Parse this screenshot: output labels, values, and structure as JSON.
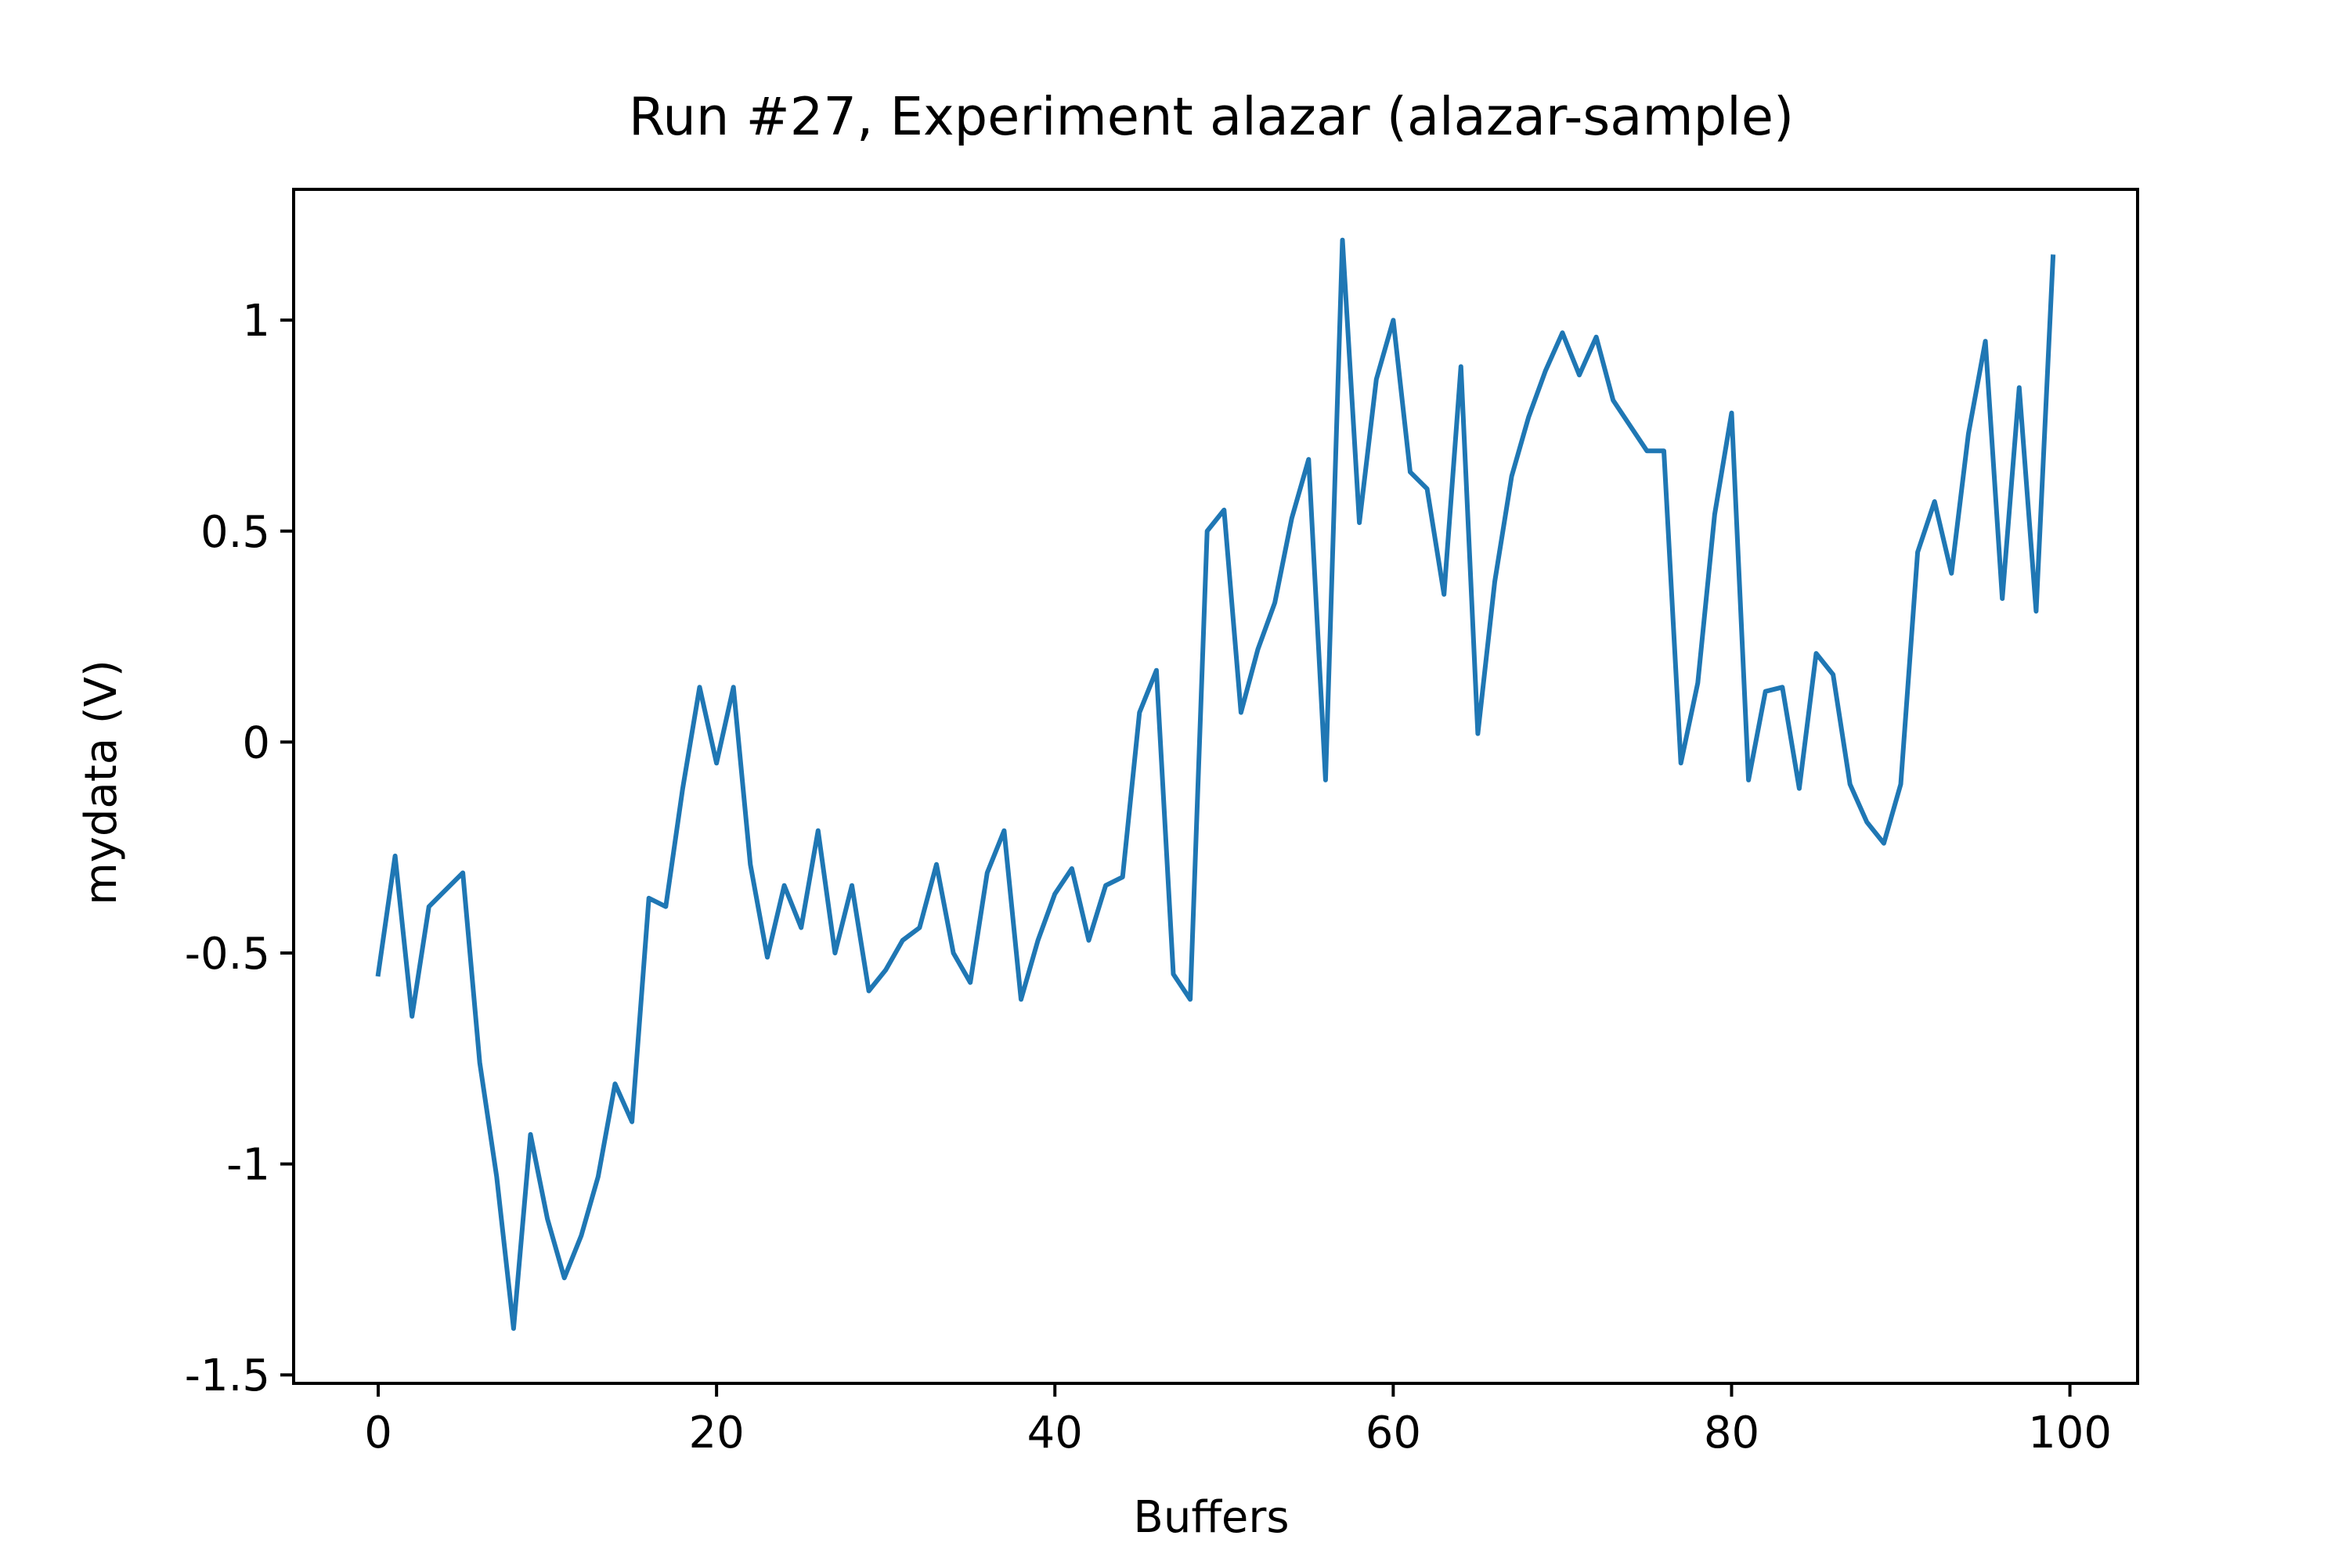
{
  "chart_data": {
    "type": "line",
    "title": "Run #27, Experiment alazar (alazar-sample)",
    "xlabel": "Buffers",
    "ylabel": "mydata (V)",
    "xlim": [
      -5,
      104
    ],
    "ylim": [
      -1.52,
      1.31
    ],
    "xticks": [
      {
        "value": 0,
        "label": "0"
      },
      {
        "value": 20,
        "label": "20"
      },
      {
        "value": 40,
        "label": "40"
      },
      {
        "value": 60,
        "label": "60"
      },
      {
        "value": 80,
        "label": "80"
      },
      {
        "value": 100,
        "label": "100"
      }
    ],
    "yticks": [
      {
        "value": -1.5,
        "label": "-1.5"
      },
      {
        "value": -1,
        "label": "-1"
      },
      {
        "value": -0.5,
        "label": "-0.5"
      },
      {
        "value": 0,
        "label": "0"
      },
      {
        "value": 0.5,
        "label": "0.5"
      },
      {
        "value": 1,
        "label": "1"
      }
    ],
    "grid": false,
    "series": [
      {
        "color": "#1f77b4",
        "x": [
          0,
          1,
          2,
          3,
          4,
          5,
          6,
          7,
          8,
          9,
          10,
          11,
          12,
          13,
          14,
          15,
          16,
          17,
          18,
          19,
          20,
          21,
          22,
          23,
          24,
          25,
          26,
          27,
          28,
          29,
          30,
          31,
          32,
          33,
          34,
          35,
          36,
          37,
          38,
          39,
          40,
          41,
          42,
          43,
          44,
          45,
          46,
          47,
          48,
          49,
          50,
          51,
          52,
          53,
          54,
          55,
          56,
          57,
          58,
          59,
          60,
          61,
          62,
          63,
          64,
          65,
          66,
          67,
          68,
          69,
          70,
          71,
          72,
          73,
          74,
          75,
          76,
          77,
          78,
          79,
          80,
          81,
          82,
          83,
          84,
          85,
          86,
          87,
          88,
          89,
          90,
          91,
          92,
          93,
          94,
          95,
          96,
          97,
          98,
          99
        ],
        "y": [
          -0.55,
          -0.27,
          -0.65,
          -0.39,
          -0.35,
          -0.31,
          -0.76,
          -1.03,
          -1.39,
          -0.93,
          -1.13,
          -1.27,
          -1.17,
          -1.03,
          -0.81,
          -0.9,
          -0.37,
          -0.39,
          -0.11,
          0.13,
          -0.05,
          0.13,
          -0.29,
          -0.51,
          -0.34,
          -0.44,
          -0.21,
          -0.5,
          -0.34,
          -0.59,
          -0.54,
          -0.47,
          -0.44,
          -0.29,
          -0.5,
          -0.57,
          -0.31,
          -0.21,
          -0.61,
          -0.47,
          -0.36,
          -0.3,
          -0.47,
          -0.34,
          -0.32,
          0.07,
          0.17,
          -0.55,
          -0.61,
          0.5,
          0.55,
          0.07,
          0.22,
          0.33,
          0.53,
          0.67,
          -0.09,
          1.19,
          0.52,
          0.86,
          1.0,
          0.64,
          0.6,
          0.35,
          0.89,
          0.02,
          0.38,
          0.63,
          0.77,
          0.88,
          0.97,
          0.87,
          0.96,
          0.81,
          0.75,
          0.69,
          0.69,
          -0.05,
          0.14,
          0.54,
          0.78,
          -0.09,
          0.12,
          0.13,
          -0.11,
          0.21,
          0.16,
          -0.1,
          -0.19,
          -0.24,
          -0.1,
          0.45,
          0.57,
          0.4,
          0.73,
          0.95,
          0.34,
          0.84,
          0.31,
          1.15
        ]
      }
    ]
  }
}
